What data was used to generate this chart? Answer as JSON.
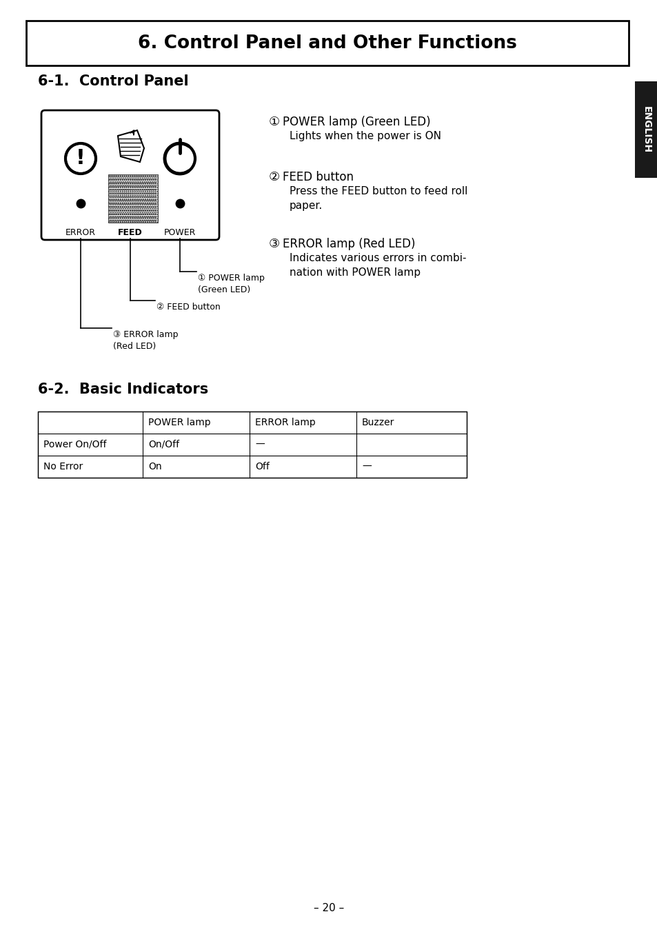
{
  "title": "6. Control Panel and Other Functions",
  "section1_title": "6-1.  Control Panel",
  "section2_title": "6-2.  Basic Indicators",
  "right_ann": [
    {
      "number": "①",
      "line1": "POWER lamp (Green LED)",
      "line2": "Lights when the power is ON"
    },
    {
      "number": "②",
      "line1": "FEED button",
      "line2": "Press the FEED button to feed roll\npaper."
    },
    {
      "number": "③",
      "line1": "ERROR lamp (Red LED)",
      "line2": "Indicates various errors in combi-\nnation with POWER lamp"
    }
  ],
  "table_headers": [
    "",
    "POWER lamp",
    "ERROR lamp",
    "Buzzer"
  ],
  "table_rows": [
    [
      "Power On/Off",
      "On/Off",
      "—",
      ""
    ],
    [
      "No Error",
      "On",
      "Off",
      "—"
    ]
  ],
  "page_number": "– 20 –",
  "bg_color": "#ffffff",
  "english_tab_color": "#1a1a1a",
  "english_tab_text": "ENGLISH"
}
